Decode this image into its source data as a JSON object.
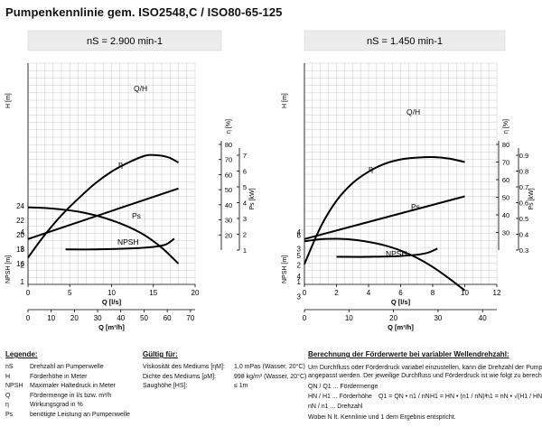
{
  "title": "Pumpenkennlinie gem. ISO2548,C / ISO80-65-125",
  "chart_data": [
    {
      "type": "line",
      "title": "n_S = 2.900 min⁻¹",
      "speed_label": "nS = 2.900 min-1",
      "xlabel": "Q [l/s]",
      "xlabel2": "Q [m³/h]",
      "x_lim": [
        0,
        20
      ],
      "x_ticks": [
        0,
        5,
        10,
        15,
        20
      ],
      "x2_ticks": [
        0,
        10,
        20,
        30,
        40,
        50,
        60,
        70
      ],
      "head": {
        "ylabel": "H [m]",
        "y_lim": [
          15,
          25
        ],
        "y_ticks": [
          16,
          18,
          20,
          22,
          24
        ],
        "series": [
          {
            "name": "Q/H",
            "x": [
              0,
              2,
              4,
              6,
              8,
              10,
              12,
              14,
              16,
              18
            ],
            "y": [
              23.8,
              23.7,
              23.5,
              23.2,
              22.7,
              22.0,
              21.1,
              19.9,
              18.2,
              16.0
            ]
          }
        ]
      },
      "efficiency_power": {
        "eta_label": "η [%]",
        "eta_ticks": [
          20,
          30,
          40,
          50,
          60,
          70,
          80
        ],
        "power_label": "Ps [kW]",
        "power_ticks": [
          1,
          2,
          3,
          4,
          5,
          6,
          7
        ],
        "series": [
          {
            "name": "η",
            "x": [
              0,
              2,
              4,
              6,
              8,
              10,
              12,
              14,
              15,
              16,
              17,
              18
            ],
            "y": [
              5,
              20,
              33,
              44,
              54,
              62,
              68,
              72.5,
              73,
              72.5,
              71,
              68
            ],
            "unit": "%"
          },
          {
            "name": "Ps",
            "x": [
              0,
              18
            ],
            "y": [
              1.7,
              4.9
            ],
            "unit": "kW"
          }
        ]
      },
      "npsh": {
        "ylabel": "NPSH [m]",
        "y_ticks": [
          1,
          2,
          3,
          4
        ],
        "series": [
          {
            "name": "NPSH",
            "x": [
              4.5,
              8,
              12,
              15,
              16.5,
              17.5
            ],
            "y": [
              2.95,
              2.95,
              3.0,
              3.1,
              3.25,
              3.6
            ]
          }
        ]
      }
    },
    {
      "type": "line",
      "title": "n_S = 1.450 min⁻¹",
      "speed_label": "nS = 1.450 min-1",
      "xlabel": "Q [l/s]",
      "xlabel2": "Q [m³/h]",
      "x_lim": [
        0,
        12
      ],
      "x_ticks": [
        0,
        2,
        4,
        6,
        8,
        10,
        12
      ],
      "x2_ticks": [
        0,
        10,
        20,
        30,
        40
      ],
      "head": {
        "ylabel": "H [m]",
        "y_lim": [
          2.5,
          6.9
        ],
        "y_ticks": [
          3,
          4,
          5,
          6
        ],
        "series": [
          {
            "name": "Q/H",
            "x": [
              0,
              1,
              2,
              3,
              4,
              5,
              6,
              7,
              8,
              9,
              10
            ],
            "y": [
              5.7,
              5.8,
              5.82,
              5.78,
              5.67,
              5.5,
              5.25,
              4.9,
              4.45,
              3.9,
              3.3
            ]
          }
        ]
      },
      "efficiency_power": {
        "eta_label": "η [%]",
        "eta_ticks": [
          30,
          40,
          50,
          60,
          70,
          80
        ],
        "power_label": "Ps [kW]",
        "power_ticks": [
          0.3,
          0.4,
          0.5,
          0.6,
          0.7,
          0.8,
          0.9
        ],
        "series": [
          {
            "name": "η",
            "x": [
              0,
              1,
              2,
              3,
              4,
              5,
              6,
              7,
              8,
              9,
              10
            ],
            "y": [
              12,
              33,
              48,
              58,
              64.5,
              69,
              71.5,
              72.5,
              72.8,
              72,
              70
            ],
            "unit": "%"
          },
          {
            "name": "Ps",
            "x": [
              0,
              10
            ],
            "y": [
              0.37,
              0.64
            ],
            "unit": "kW"
          }
        ]
      },
      "npsh": {
        "ylabel": "NPSH [m]",
        "y_ticks": [
          1,
          2,
          3,
          4
        ],
        "series": [
          {
            "name": "NPSH",
            "x": [
              2,
              4,
              6,
              7.5,
              8.3
            ],
            "y": [
              2.5,
              2.5,
              2.55,
              2.7,
              3.0
            ]
          }
        ]
      }
    }
  ],
  "legend": {
    "heading": "Legende:",
    "items": [
      {
        "sym": "nS",
        "text": "Drehzahl an Pumpenwelle"
      },
      {
        "sym": "H",
        "text": "Förderhöhe in Meter"
      },
      {
        "sym": "NPSH",
        "text": "Maximaler Haltedruck in Meter"
      },
      {
        "sym": "Q",
        "text": "Fördermenge in l/s bzw. m³/h"
      },
      {
        "sym": "η",
        "text": "Wirkungsgrad in %"
      },
      {
        "sym": "Ps",
        "text": "benötigte Leistung an Pumpenwelle"
      }
    ]
  },
  "validity": {
    "heading": "Gültig für:",
    "items": [
      {
        "label": "Viskosität des Mediums [ηM]:",
        "value": "1,0 mPas (Wasser, 20°C)"
      },
      {
        "label": "Dichte des Mediums [ρM]:",
        "value": "998 kg/m³ (Wasser, 20°C)"
      },
      {
        "label": "Saughöhe [HS]:",
        "value": "≤ 1m"
      }
    ]
  },
  "calc": {
    "heading": "Berechnung der Förderwerte bei variabler Wellendrehzahl:",
    "text1": "Um Durchfluss oder Förderdruck variabel einzustellen, kann die Drehzahl der Pumpenwelle",
    "text2": "angepasst werden. Der jeweilige Durchfluss und Förderdruck ist wie folgt zu berechnen:",
    "defs": [
      "QN / Q1 ... Fördermenge",
      "HN / H1 ... Förderhöhe",
      "nN / n1 ... Drehzahl"
    ],
    "formula1": "Q1 = QN • n1 / nN",
    "formula2": "H1 = HN • (n1 / nN)²",
    "formula3": "n1 = nN • √(H1 / HN)",
    "footer": "Wobei N lt. Kennlinie und 1 dem Ergebnis entspricht."
  }
}
